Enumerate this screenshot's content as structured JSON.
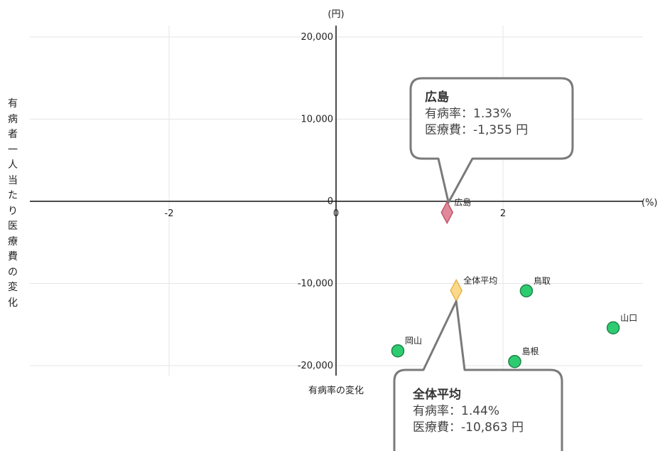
{
  "chart_data": {
    "type": "scatter",
    "title": "",
    "xlabel": "有病率の変化",
    "ylabel": "有病者一人当たり医療費の変化",
    "x_unit": "(%)",
    "y_unit": "(円)",
    "xlim": [
      -3.9,
      3.65
    ],
    "ylim": [
      -21200,
      21300
    ],
    "x_ticks": [
      {
        "v": -2,
        "label": "-2"
      },
      {
        "v": 0,
        "label": "0"
      },
      {
        "v": 2,
        "label": "2"
      }
    ],
    "y_ticks": [
      {
        "v": 20000,
        "label": "20,000"
      },
      {
        "v": 10000,
        "label": "10,000"
      },
      {
        "v": 0,
        "label": "0"
      },
      {
        "v": -10000,
        "label": "-10,000"
      },
      {
        "v": -20000,
        "label": "-20,000"
      }
    ],
    "grid": true,
    "points": [
      {
        "name": "広島",
        "x": 1.33,
        "y": -1355,
        "marker": "diamond",
        "color": "#e0899a",
        "stroke": "#c2566b"
      },
      {
        "name": "全体平均",
        "x": 1.44,
        "y": -10863,
        "marker": "diamond",
        "color": "#fbd88a",
        "stroke": "#e6b44c"
      },
      {
        "name": "鳥取",
        "x": 2.28,
        "y": -10900,
        "marker": "circle",
        "color": "#2ecc71",
        "stroke": "#1e8449"
      },
      {
        "name": "山口",
        "x": 3.32,
        "y": -15400,
        "marker": "circle",
        "color": "#2ecc71",
        "stroke": "#1e8449"
      },
      {
        "name": "岡山",
        "x": 0.74,
        "y": -18200,
        "marker": "circle",
        "color": "#2ecc71",
        "stroke": "#1e8449"
      },
      {
        "name": "島根",
        "x": 2.14,
        "y": -19500,
        "marker": "circle",
        "color": "#2ecc71",
        "stroke": "#1e8449"
      }
    ]
  },
  "callouts": [
    {
      "title": "広島",
      "line1": "有病率：1.33%",
      "line2": "医療費：-1,355 円"
    },
    {
      "title": "全体平均",
      "line1": "有病率：1.44%",
      "line2": "医療費：-10,863 円"
    }
  ]
}
